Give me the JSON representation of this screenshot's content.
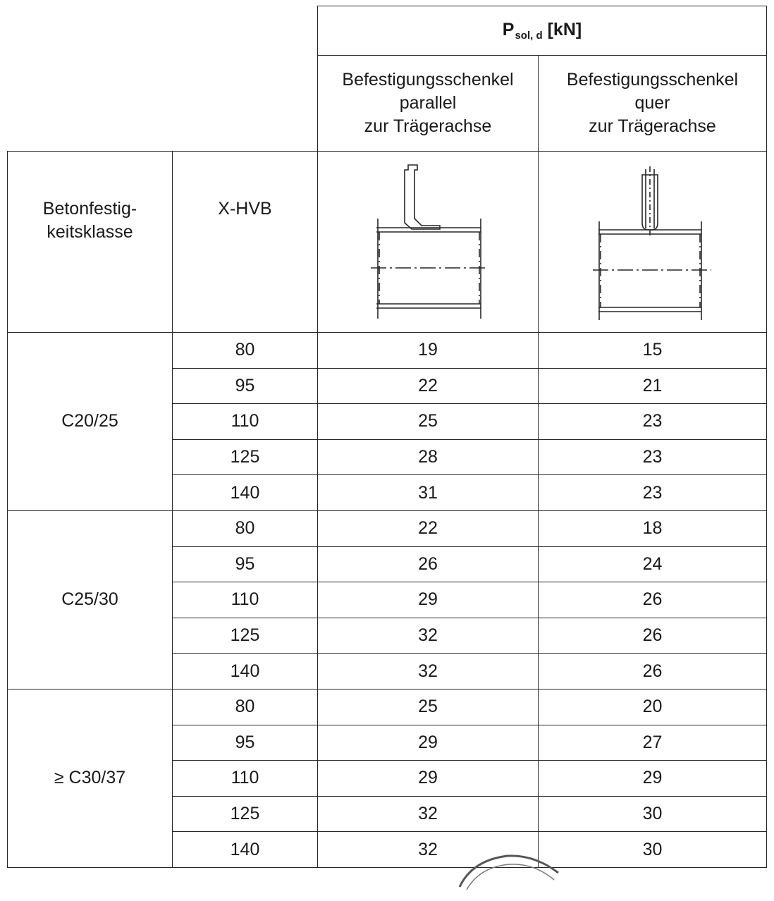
{
  "table": {
    "header": {
      "title_main": "P",
      "title_sub": "sol, d",
      "title_unit": "[kN]",
      "col_parallel": [
        "Befestigungsschenkel",
        "parallel",
        "zur Trägerachse"
      ],
      "col_quer": [
        "Befestigungsschenkel",
        "quer",
        "zur Trägerachse"
      ],
      "label_concrete": [
        "Betonfestig-",
        "keitsklasse"
      ],
      "label_xhvb": "X-HVB"
    },
    "groups": [
      {
        "class": "C20/25",
        "rows": [
          {
            "xhvb": "80",
            "parallel": "19",
            "quer": "15"
          },
          {
            "xhvb": "95",
            "parallel": "22",
            "quer": "21"
          },
          {
            "xhvb": "110",
            "parallel": "25",
            "quer": "23"
          },
          {
            "xhvb": "125",
            "parallel": "28",
            "quer": "23"
          },
          {
            "xhvb": "140",
            "parallel": "31",
            "quer": "23"
          }
        ]
      },
      {
        "class": "C25/30",
        "rows": [
          {
            "xhvb": "80",
            "parallel": "22",
            "quer": "18"
          },
          {
            "xhvb": "95",
            "parallel": "26",
            "quer": "24"
          },
          {
            "xhvb": "110",
            "parallel": "29",
            "quer": "26"
          },
          {
            "xhvb": "125",
            "parallel": "32",
            "quer": "26"
          },
          {
            "xhvb": "140",
            "parallel": "32",
            "quer": "26"
          }
        ]
      },
      {
        "class": "≥ C30/37",
        "rows": [
          {
            "xhvb": "80",
            "parallel": "25",
            "quer": "20"
          },
          {
            "xhvb": "95",
            "parallel": "29",
            "quer": "27"
          },
          {
            "xhvb": "110",
            "parallel": "29",
            "quer": "29"
          },
          {
            "xhvb": "125",
            "parallel": "32",
            "quer": "30"
          },
          {
            "xhvb": "140",
            "parallel": "32",
            "quer": "30"
          }
        ]
      }
    ]
  },
  "icons": {
    "diagram_parallel": "beam-cross-section-parallel-icon",
    "diagram_quer": "beam-cross-section-quer-icon",
    "seal": "stamp-seal-icon"
  }
}
